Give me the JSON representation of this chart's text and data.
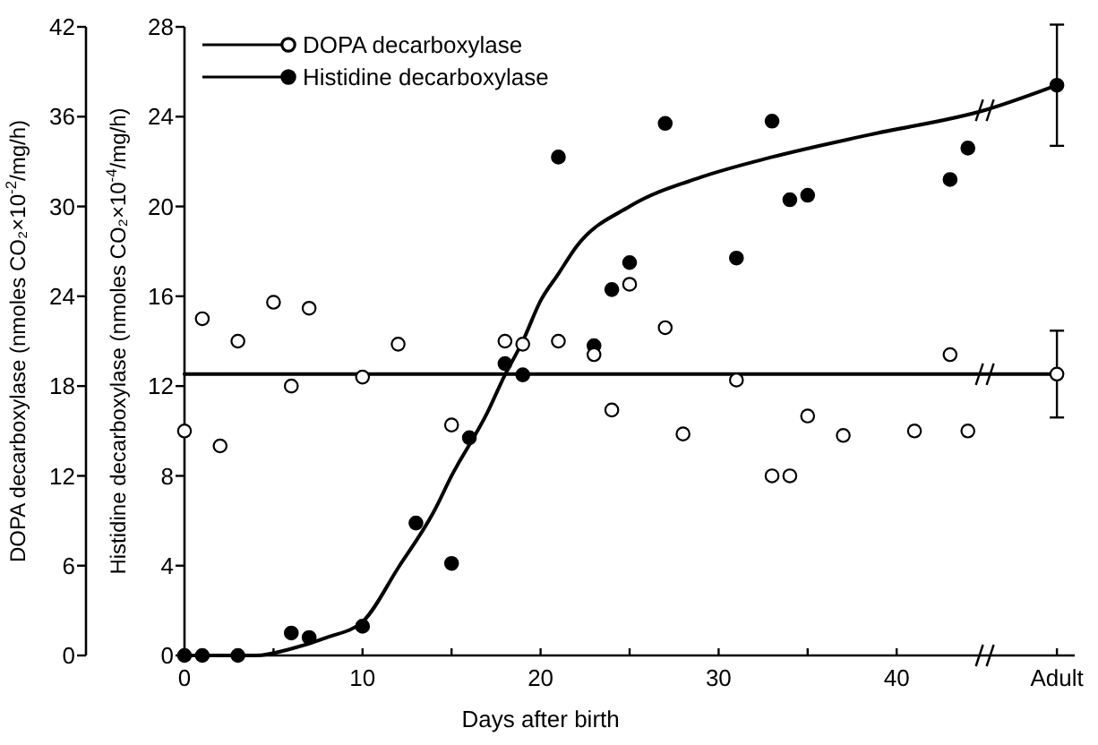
{
  "chart_data": {
    "type": "scatter",
    "xlabel": "Days after birth",
    "ylabel": "Histidine decarboxylase (nmoles CO₂×10$^{-4}$/mg/h)",
    "y2label": "DOPA decarboxylase (nmoles CO₂×10$^{-2}$/mg/h)",
    "xlim": [
      0,
      50
    ],
    "xticks": [
      0,
      {
        "value": 5,
        "label": null
      },
      10,
      {
        "value": 15,
        "label": null
      },
      20,
      {
        "value": 25,
        "label": null
      },
      30,
      {
        "value": 35,
        "label": null
      },
      40,
      {
        "value": 49,
        "label": "Adult"
      }
    ],
    "ylim": [
      0,
      28
    ],
    "yticks": [
      0,
      4,
      8,
      12,
      16,
      20,
      24,
      28
    ],
    "y2lim": [
      0,
      42
    ],
    "y2ticks": [
      0,
      6,
      12,
      18,
      24,
      30,
      36,
      42
    ],
    "legend": "top left",
    "series": [
      {
        "type": "line",
        "axis": "y2",
        "color": "#000000",
        "marker": "none",
        "x": [
          0,
          49
        ],
        "values": [
          18.8,
          18.8
        ]
      },
      {
        "type": "line",
        "axis": "y",
        "color": "#000000",
        "marker": "none",
        "x": [
          0,
          4,
          6,
          8,
          10,
          12,
          14,
          15,
          17,
          18,
          19,
          20,
          21,
          22,
          25,
          29,
          33,
          38.5,
          45,
          49
        ],
        "values": [
          0,
          0,
          0.3,
          0.8,
          1.5,
          3.9,
          6.4,
          8,
          10.8,
          12.5,
          14,
          15.8,
          17,
          18.2,
          20,
          21.3,
          22.2,
          23.2,
          24.3,
          25.4
        ]
      },
      {
        "name": "DOPA decarboxylase",
        "axis": "y2",
        "color": "#ffffff",
        "marker": "circle",
        "x": [
          0,
          1,
          2,
          3,
          5,
          6,
          7,
          10,
          12,
          15,
          18,
          19,
          21,
          23,
          24,
          25,
          27,
          28,
          31,
          33,
          34,
          35,
          37,
          41,
          43,
          44,
          49
        ],
        "values": [
          15,
          22.5,
          14,
          21,
          23.6,
          18,
          23.2,
          18.6,
          20.8,
          15.4,
          21,
          20.8,
          21,
          20.1,
          16.4,
          24.8,
          21.9,
          14.8,
          18.4,
          12,
          12,
          16,
          14.7,
          15,
          20.1,
          15,
          18.8
        ],
        "errors": [
          null,
          null,
          null,
          null,
          null,
          null,
          null,
          null,
          null,
          null,
          null,
          null,
          null,
          null,
          null,
          null,
          null,
          null,
          null,
          null,
          null,
          null,
          null,
          null,
          null,
          null,
          2.9
        ]
      },
      {
        "name": "Histidine decarboxylase",
        "axis": "y",
        "color": "#000000",
        "marker": "circle",
        "x": [
          0,
          1,
          3,
          6,
          7,
          10,
          13,
          15,
          16,
          18,
          19,
          21,
          23,
          24,
          25,
          27,
          31,
          33,
          34,
          35,
          43,
          44,
          49
        ],
        "values": [
          0,
          0,
          0,
          1.0,
          0.8,
          1.3,
          5.9,
          4.1,
          9.7,
          13,
          12.5,
          22.2,
          13.8,
          16.3,
          17.5,
          23.7,
          17.7,
          23.8,
          20.3,
          20.5,
          21.2,
          22.6,
          25.4
        ],
        "errors": [
          null,
          null,
          null,
          null,
          null,
          null,
          null,
          null,
          null,
          null,
          null,
          null,
          null,
          null,
          null,
          null,
          null,
          null,
          null,
          null,
          null,
          null,
          2.7
        ]
      }
    ]
  }
}
